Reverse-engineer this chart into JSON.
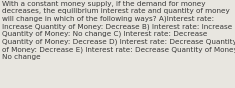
{
  "text": "With a constant money supply, if the demand for money\ndecreases, the equilibrium interest rate and quantity of money\nwill change in which of the following ways? A)Interest rate:\nIncrease Quantity of Money: Decrease B) Interest rate: Increase\nQuantity of Money: No change C) Interest rate: Decrease\nQuantity of Money: Decrease D) Interest rate: Decrease Quantity\nof Money: Decrease E) Interest rate: Decrease Quantity of Money:\nNo change",
  "background_color": "#e8e6e0",
  "text_color": "#3a3a3a",
  "font_size": 5.2,
  "fig_width": 2.35,
  "fig_height": 0.88,
  "dpi": 100
}
